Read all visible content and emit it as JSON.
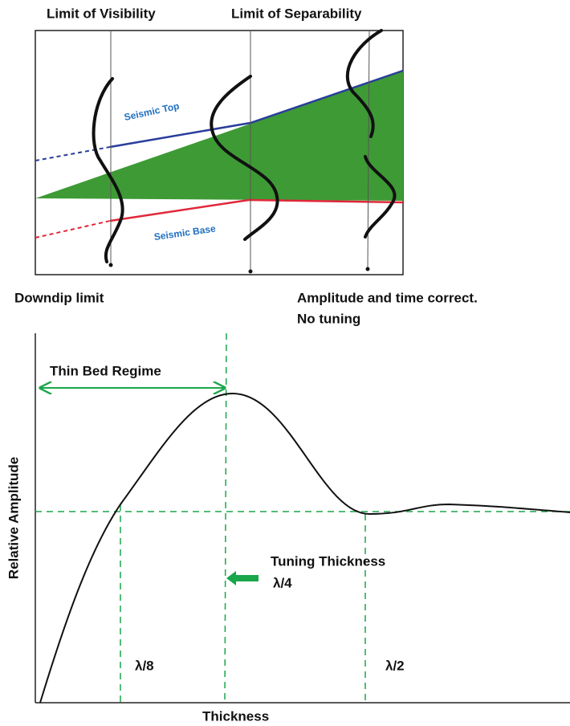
{
  "top_panel": {
    "limit_visibility": "Limit of Visibility",
    "limit_separability": "Limit of Separability",
    "seismic_top": "Seismic Top",
    "seismic_base": "Seismic Base",
    "downdip_limit": "Downdip limit",
    "correct_line1": "Amplitude and time correct.",
    "correct_line2": "No tuning"
  },
  "bottom_panel": {
    "thin_bed_regime": "Thin Bed Regime",
    "y_axis_label": "Relative Amplitude",
    "tuning_thickness": "Tuning Thickness",
    "lambda_4": "λ/4",
    "lambda_8": "λ/8",
    "lambda_2": "λ/2",
    "x_axis_label": "Thickness"
  }
}
